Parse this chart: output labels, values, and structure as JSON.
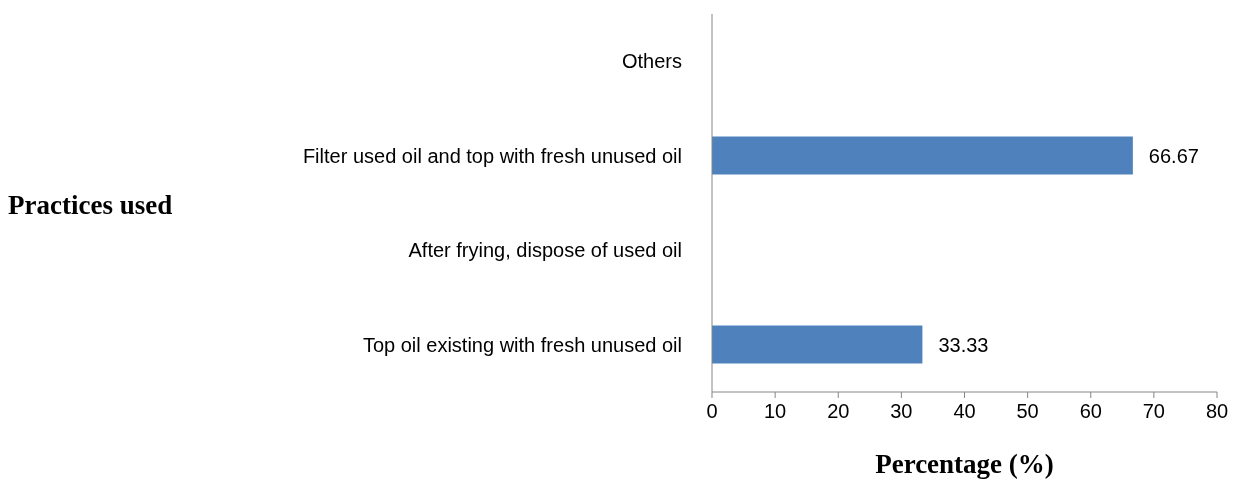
{
  "chart_data": {
    "type": "bar",
    "orientation": "horizontal",
    "ylabel": "Practices used",
    "xlabel": "Percentage (%)",
    "categories": [
      "Others",
      "Filter used oil and top with fresh unused oil",
      "After frying, dispose of used oil",
      "Top oil existing with fresh unused oil "
    ],
    "values": [
      0,
      66.67,
      0,
      33.33
    ],
    "value_labels": [
      null,
      "66.67",
      null,
      "33.33"
    ],
    "color": "#4f81bd",
    "xlim": [
      0,
      80
    ],
    "xticks": [
      0,
      10,
      20,
      30,
      40,
      50,
      60,
      70,
      80
    ],
    "grid": false,
    "legend": false
  }
}
